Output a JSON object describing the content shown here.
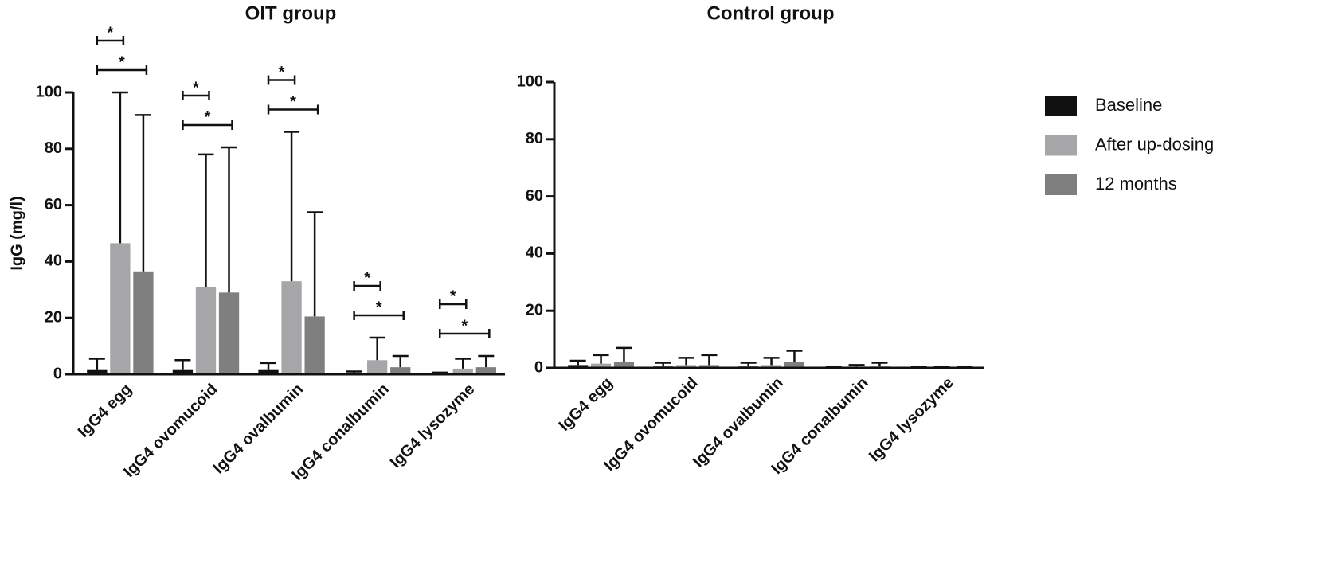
{
  "chart_data": [
    {
      "type": "bar",
      "title": "OIT group",
      "ylabel": "IgG (mg/l)",
      "categories": [
        "IgG4 egg",
        "IgG4 ovomucoid",
        "IgG4 ovalbumin",
        "IgG4 conalbumin",
        "IgG4 lysozyme"
      ],
      "series": [
        {
          "color": "#111111",
          "values": [
            1.5,
            1.5,
            1.5,
            0.5,
            0.3
          ],
          "errors": [
            4,
            3.5,
            2.5,
            0.5,
            0.3
          ]
        },
        {
          "color": "#a6a6a8",
          "values": [
            46.5,
            31,
            33,
            5,
            2
          ],
          "errors": [
            53.5,
            47,
            53,
            8,
            3.5
          ]
        },
        {
          "color": "#7f7f7f",
          "values": [
            36.5,
            29,
            20.5,
            2.5,
            2.5
          ],
          "errors": [
            55.5,
            51.5,
            37,
            4,
            4
          ]
        }
      ],
      "significance": [
        [
          "*",
          "*"
        ],
        [
          "*",
          "*"
        ],
        [
          "*",
          "*"
        ],
        [
          "*",
          "*"
        ],
        [
          "*",
          "*"
        ]
      ],
      "ylim": [
        0,
        100
      ],
      "yticks": [
        0,
        20,
        40,
        60,
        80,
        100
      ],
      "grid": false
    },
    {
      "type": "bar",
      "title": "Control group",
      "categories": [
        "IgG4 egg",
        "IgG4 ovomucoid",
        "IgG4 ovalbumin",
        "IgG4 conalbumin",
        "IgG4 lysozyme"
      ],
      "series": [
        {
          "name": "Baseline",
          "color": "#111111",
          "values": [
            1,
            0.5,
            0.5,
            0.3,
            0.2
          ],
          "errors": [
            1.5,
            1.3,
            1.3,
            0.2,
            0
          ]
        },
        {
          "name": "After up-dosing",
          "color": "#a6a6a8",
          "values": [
            1.5,
            1,
            1,
            0.5,
            0.2
          ],
          "errors": [
            3,
            2.5,
            2.5,
            0.5,
            0
          ]
        },
        {
          "name": "12 months",
          "color": "#7f7f7f",
          "values": [
            2,
            1,
            2,
            0.5,
            0.3
          ],
          "errors": [
            5,
            3.5,
            4,
            1.3,
            0
          ]
        }
      ],
      "legend": "right",
      "ylim": [
        0,
        100
      ],
      "yticks": [
        0,
        20,
        40,
        60,
        80,
        100
      ],
      "grid": false
    }
  ]
}
